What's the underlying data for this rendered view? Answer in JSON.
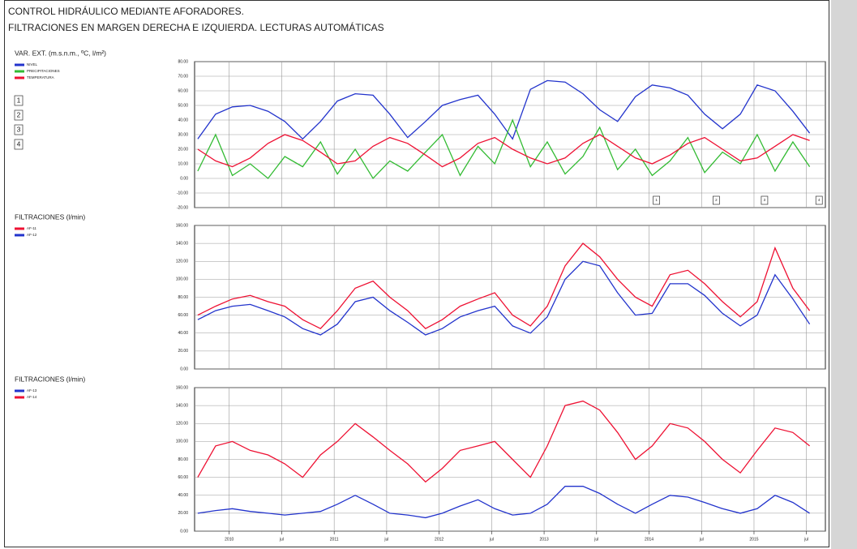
{
  "header": {
    "title": "CONTROL HIDRÁULICO MEDIANTE AFORADORES.",
    "subtitle": "FILTRACIONES EN MARGEN DERECHA E IZQUIERDA. LECTURAS AUTOMÁTICAS"
  },
  "chart_data": [
    {
      "type": "line",
      "title": "VAR. EXT. (m.s.n.m., ºC, l/m²)",
      "grid": true,
      "x": [
        2009.7,
        2009.87,
        2010.03,
        2010.2,
        2010.37,
        2010.53,
        2010.7,
        2010.87,
        2011.03,
        2011.2,
        2011.37,
        2011.53,
        2011.7,
        2011.87,
        2012.03,
        2012.2,
        2012.37,
        2012.53,
        2012.7,
        2012.87,
        2013.03,
        2013.2,
        2013.37,
        2013.53,
        2013.7,
        2013.87,
        2014.03,
        2014.2,
        2014.37,
        2014.53,
        2014.7,
        2014.87,
        2015.03,
        2015.2,
        2015.37,
        2015.53
      ],
      "xlim": [
        2009.67,
        2015.68
      ],
      "ylim": [
        -20,
        80
      ],
      "yticks": [
        {
          "value": -20,
          "label": "-20.00"
        },
        {
          "value": -10,
          "label": "-10.00"
        },
        {
          "value": 0,
          "label": "0.00"
        },
        {
          "value": 10,
          "label": "10.00"
        },
        {
          "value": 20,
          "label": "20.00"
        },
        {
          "value": 30,
          "label": "30.00"
        },
        {
          "value": 40,
          "label": "40.00"
        },
        {
          "value": 50,
          "label": "50.00"
        },
        {
          "value": 60,
          "label": "60.00"
        },
        {
          "value": 70,
          "label": "70.00"
        },
        {
          "value": 80,
          "label": "80.00"
        }
      ],
      "series": [
        {
          "name": "NIVEL",
          "color": "#2233cc",
          "values": [
            27,
            44,
            49,
            50,
            46,
            39,
            27,
            39,
            53,
            58,
            57,
            44,
            28,
            39,
            50,
            54,
            57,
            44,
            27,
            61,
            67,
            66,
            58,
            47,
            39,
            56,
            64,
            62,
            57,
            44,
            34,
            44,
            64,
            60,
            46,
            31
          ]
        },
        {
          "name": "PRECIPITACIONES",
          "color": "#33bb33",
          "values": [
            5,
            30,
            2,
            10,
            0,
            15,
            8,
            25,
            3,
            20,
            0,
            12,
            5,
            18,
            30,
            2,
            22,
            10,
            40,
            8,
            25,
            3,
            15,
            35,
            6,
            20,
            2,
            12,
            28,
            4,
            18,
            10,
            30,
            5,
            25,
            8
          ]
        },
        {
          "name": "TEMPERATURA",
          "color": "#ee1133",
          "values": [
            20,
            12,
            8,
            14,
            24,
            30,
            26,
            18,
            10,
            12,
            22,
            28,
            24,
            16,
            8,
            14,
            24,
            28,
            20,
            14,
            10,
            14,
            24,
            30,
            22,
            14,
            10,
            16,
            24,
            28,
            20,
            12,
            14,
            22,
            30,
            26
          ]
        }
      ],
      "events": [
        {
          "label": "1",
          "x": 2014.07
        },
        {
          "label": "2",
          "x": 2014.64
        },
        {
          "label": "3",
          "x": 2015.1
        },
        {
          "label": "4",
          "x": 2015.62
        }
      ]
    },
    {
      "type": "line",
      "title": "FILTRACIONES (l/min)",
      "grid": true,
      "x": [
        2009.7,
        2009.87,
        2010.03,
        2010.2,
        2010.37,
        2010.53,
        2010.7,
        2010.87,
        2011.03,
        2011.2,
        2011.37,
        2011.53,
        2011.7,
        2011.87,
        2012.03,
        2012.2,
        2012.37,
        2012.53,
        2012.7,
        2012.87,
        2013.03,
        2013.2,
        2013.37,
        2013.53,
        2013.7,
        2013.87,
        2014.03,
        2014.2,
        2014.37,
        2014.53,
        2014.7,
        2014.87,
        2015.03,
        2015.2,
        2015.37,
        2015.53
      ],
      "xlim": [
        2009.67,
        2015.68
      ],
      "ylim": [
        0,
        160
      ],
      "yticks": [
        {
          "value": 0,
          "label": "0.00"
        },
        {
          "value": 20,
          "label": "20.00"
        },
        {
          "value": 40,
          "label": "40.00"
        },
        {
          "value": 60,
          "label": "60.00"
        },
        {
          "value": 80,
          "label": "80.00"
        },
        {
          "value": 100,
          "label": "100.00"
        },
        {
          "value": 120,
          "label": "120.00"
        },
        {
          "value": 140,
          "label": "140.00"
        },
        {
          "value": 160,
          "label": "160.00"
        }
      ],
      "series": [
        {
          "name": "AF-11",
          "color": "#ee1133",
          "values": [
            60,
            70,
            78,
            82,
            75,
            70,
            55,
            45,
            65,
            90,
            98,
            80,
            65,
            45,
            55,
            70,
            78,
            85,
            60,
            48,
            70,
            115,
            140,
            125,
            100,
            80,
            70,
            105,
            110,
            95,
            75,
            58,
            75,
            135,
            90,
            65
          ]
        },
        {
          "name": "AF-12",
          "color": "#2233cc",
          "values": [
            55,
            65,
            70,
            72,
            65,
            58,
            45,
            38,
            50,
            75,
            80,
            65,
            52,
            38,
            45,
            58,
            65,
            70,
            48,
            40,
            58,
            100,
            120,
            115,
            85,
            60,
            62,
            95,
            95,
            82,
            62,
            48,
            60,
            105,
            78,
            50
          ]
        }
      ]
    },
    {
      "type": "line",
      "title": "FILTRACIONES (l/min)",
      "grid": true,
      "x": [
        2009.7,
        2009.87,
        2010.03,
        2010.2,
        2010.37,
        2010.53,
        2010.7,
        2010.87,
        2011.03,
        2011.2,
        2011.37,
        2011.53,
        2011.7,
        2011.87,
        2012.03,
        2012.2,
        2012.37,
        2012.53,
        2012.7,
        2012.87,
        2013.03,
        2013.2,
        2013.37,
        2013.53,
        2013.7,
        2013.87,
        2014.03,
        2014.2,
        2014.37,
        2014.53,
        2014.7,
        2014.87,
        2015.03,
        2015.2,
        2015.37,
        2015.53
      ],
      "xlim": [
        2009.67,
        2015.68
      ],
      "xticks": [
        2010,
        {
          "value": 2010.5,
          "label": "jul"
        },
        2011,
        {
          "value": 2011.5,
          "label": "jul"
        },
        2012,
        {
          "value": 2012.5,
          "label": "jul"
        },
        2013,
        {
          "value": 2013.5,
          "label": "jul"
        },
        2014,
        {
          "value": 2014.5,
          "label": "jul"
        },
        2015,
        {
          "value": 2015.5,
          "label": "jul"
        }
      ],
      "ylim": [
        0,
        160
      ],
      "yticks": [
        {
          "value": 0,
          "label": "0.00"
        },
        {
          "value": 20,
          "label": "20.00"
        },
        {
          "value": 40,
          "label": "40.00"
        },
        {
          "value": 60,
          "label": "60.00"
        },
        {
          "value": 80,
          "label": "80.00"
        },
        {
          "value": 100,
          "label": "100.00"
        },
        {
          "value": 120,
          "label": "120.00"
        },
        {
          "value": 140,
          "label": "140.00"
        },
        {
          "value": 160,
          "label": "160.00"
        }
      ],
      "series": [
        {
          "name": "AF-13",
          "color": "#2233cc",
          "values": [
            20,
            23,
            25,
            22,
            20,
            18,
            20,
            22,
            30,
            40,
            30,
            20,
            18,
            15,
            20,
            28,
            35,
            25,
            18,
            20,
            30,
            50,
            50,
            42,
            30,
            20,
            30,
            40,
            38,
            32,
            25,
            20,
            25,
            40,
            32,
            20
          ]
        },
        {
          "name": "AF-14",
          "color": "#ee1133",
          "values": [
            60,
            95,
            100,
            90,
            85,
            75,
            60,
            85,
            100,
            120,
            105,
            90,
            75,
            55,
            70,
            90,
            95,
            100,
            80,
            60,
            95,
            140,
            145,
            135,
            110,
            80,
            95,
            120,
            115,
            100,
            80,
            65,
            90,
            115,
            110,
            95
          ]
        }
      ]
    }
  ]
}
